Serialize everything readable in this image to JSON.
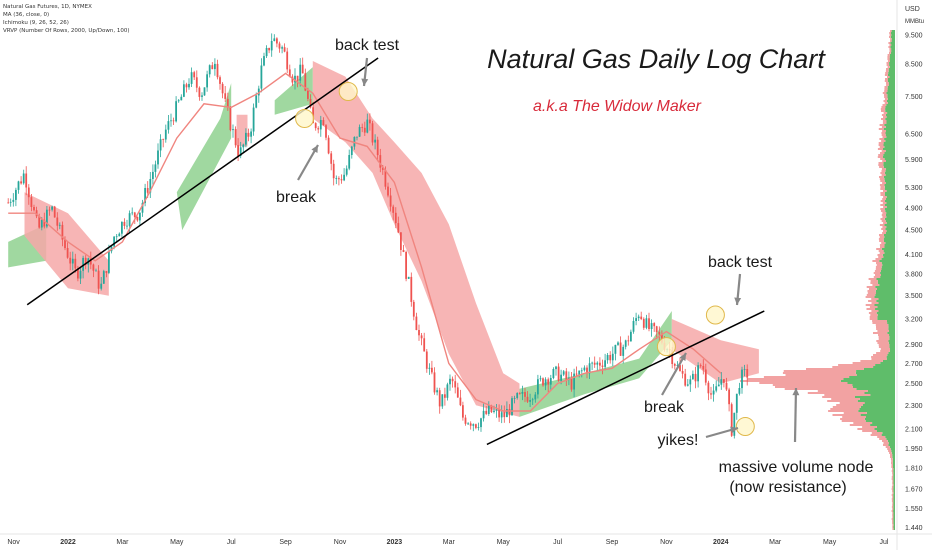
{
  "header": {
    "symbol": "Natural Gas Futures, 1D, NYMEX",
    "indicators": [
      "MA (36, close, 0)",
      "Ichimoku (9, 26, 52, 26)",
      "VRVP (Number Of Rows, 2000, Up/Down, 100)"
    ]
  },
  "annotations": {
    "title": "Natural Gas Daily Log Chart",
    "subtitle": "a.k.a The Widow Maker",
    "back_test_1": "back test",
    "break_1": "break",
    "back_test_2": "back test",
    "break_2": "break",
    "yikes": "yikes!",
    "volume_node_line1": "massive volume node",
    "volume_node_line2": "(now resistance)"
  },
  "colors": {
    "candle_up": "#26a69a",
    "candle_down": "#ef5350",
    "ma": "#f0857f",
    "cloud_bull": "#8fd18f",
    "cloud_bear": "#f6a8a8",
    "subtitle": "#d82a3a",
    "volume_up": "#5fbd6a",
    "volume_down": "#f2a2a2"
  },
  "chart_data": {
    "type": "candlestick",
    "scale": "log",
    "y_unit": "USD / MMBtu",
    "currency_label": "USD",
    "unit_label": "MMBtu",
    "y_ticks": [
      9.5,
      8.5,
      7.5,
      6.5,
      5.9,
      5.3,
      4.9,
      4.5,
      4.1,
      3.8,
      3.5,
      3.2,
      2.9,
      2.7,
      2.5,
      2.3,
      2.1,
      1.95,
      1.81,
      1.67,
      1.55,
      1.44
    ],
    "x_ticks": [
      "Nov",
      "2022",
      "Mar",
      "May",
      "Jul",
      "Sep",
      "Nov",
      "2023",
      "Mar",
      "May",
      "Jul",
      "Sep",
      "Nov",
      "2024",
      "Mar",
      "May",
      "Jul"
    ],
    "x_tick_months": [
      -2,
      0,
      2,
      4,
      6,
      8,
      10,
      12,
      14,
      16,
      18,
      20,
      22,
      24,
      26,
      28,
      30
    ],
    "price_path": [
      [
        -2.2,
        5.0
      ],
      [
        -1.6,
        5.6
      ],
      [
        -1.1,
        4.5
      ],
      [
        -0.6,
        4.9
      ],
      [
        -0.1,
        4.2
      ],
      [
        0.3,
        3.8
      ],
      [
        0.7,
        4.1
      ],
      [
        1.2,
        3.6
      ],
      [
        1.7,
        4.4
      ],
      [
        2.1,
        4.7
      ],
      [
        2.6,
        4.8
      ],
      [
        3.1,
        5.6
      ],
      [
        3.6,
        6.6
      ],
      [
        4.0,
        7.2
      ],
      [
        4.5,
        8.1
      ],
      [
        4.9,
        7.6
      ],
      [
        5.4,
        8.7
      ],
      [
        5.8,
        7.2
      ],
      [
        6.3,
        6.0
      ],
      [
        6.7,
        6.6
      ],
      [
        7.1,
        8.3
      ],
      [
        7.5,
        9.4
      ],
      [
        7.9,
        9.0
      ],
      [
        8.3,
        8.0
      ],
      [
        8.6,
        8.3
      ],
      [
        9.0,
        6.7
      ],
      [
        9.4,
        6.9
      ],
      [
        9.8,
        5.4
      ],
      [
        10.2,
        5.6
      ],
      [
        10.6,
        6.5
      ],
      [
        11.0,
        6.8
      ],
      [
        11.4,
        6.0
      ],
      [
        11.8,
        5.2
      ],
      [
        12.1,
        4.6
      ],
      [
        12.5,
        3.7
      ],
      [
        12.9,
        3.0
      ],
      [
        13.3,
        2.6
      ],
      [
        13.7,
        2.3
      ],
      [
        14.1,
        2.55
      ],
      [
        14.5,
        2.2
      ],
      [
        15.0,
        2.15
      ],
      [
        15.5,
        2.25
      ],
      [
        16.0,
        2.2
      ],
      [
        16.5,
        2.35
      ],
      [
        17.0,
        2.4
      ],
      [
        17.5,
        2.55
      ],
      [
        18.0,
        2.6
      ],
      [
        18.5,
        2.5
      ],
      [
        19.0,
        2.65
      ],
      [
        19.5,
        2.7
      ],
      [
        20.0,
        2.8
      ],
      [
        20.5,
        2.9
      ],
      [
        21.0,
        3.3
      ],
      [
        21.3,
        3.1
      ],
      [
        21.7,
        3.0
      ],
      [
        22.1,
        2.85
      ],
      [
        22.5,
        2.6
      ],
      [
        22.9,
        2.5
      ],
      [
        23.3,
        2.7
      ],
      [
        23.7,
        2.35
      ],
      [
        24.1,
        2.6
      ],
      [
        24.4,
        2.1
      ],
      [
        24.7,
        2.55
      ],
      [
        25.0,
        2.6
      ]
    ],
    "moving_average": [
      [
        -2.2,
        4.8
      ],
      [
        -1.2,
        4.8
      ],
      [
        0,
        4.3
      ],
      [
        1,
        4.0
      ],
      [
        2,
        4.3
      ],
      [
        3,
        5.2
      ],
      [
        4,
        6.4
      ],
      [
        5,
        7.3
      ],
      [
        6,
        7.2
      ],
      [
        7,
        7.6
      ],
      [
        8,
        8.2
      ],
      [
        9,
        7.6
      ],
      [
        10,
        6.4
      ],
      [
        11,
        6.2
      ],
      [
        12,
        5.4
      ],
      [
        13,
        3.9
      ],
      [
        14,
        2.7
      ],
      [
        15,
        2.35
      ],
      [
        16,
        2.25
      ],
      [
        17,
        2.25
      ],
      [
        18,
        2.5
      ],
      [
        19,
        2.6
      ],
      [
        20,
        2.65
      ],
      [
        21,
        2.85
      ],
      [
        22,
        3.05
      ],
      [
        23,
        2.85
      ],
      [
        24,
        2.6
      ]
    ],
    "ichimoku_cloud_bull": [
      [
        [
          -2.2,
          4.3
        ],
        [
          -0.8,
          4.6
        ],
        [
          -0.8,
          4.0
        ],
        [
          -2.2,
          3.9
        ]
      ],
      [
        [
          4.0,
          5.2
        ],
        [
          5.6,
          6.9
        ],
        [
          6.0,
          7.9
        ],
        [
          6.0,
          6.4
        ],
        [
          4.2,
          4.5
        ]
      ],
      [
        [
          7.6,
          7.4
        ],
        [
          9.0,
          8.4
        ],
        [
          9.0,
          7.3
        ],
        [
          7.6,
          7.0
        ]
      ],
      [
        [
          16.6,
          2.45
        ],
        [
          19.0,
          2.6
        ],
        [
          21.0,
          2.75
        ],
        [
          22.2,
          3.3
        ],
        [
          22.2,
          2.95
        ],
        [
          21.0,
          2.55
        ],
        [
          19.0,
          2.4
        ],
        [
          16.6,
          2.2
        ]
      ]
    ],
    "ichimoku_cloud_bear": [
      [
        [
          -1.6,
          5.2
        ],
        [
          0.0,
          4.8
        ],
        [
          1.5,
          4.0
        ],
        [
          1.5,
          3.5
        ],
        [
          0.0,
          3.6
        ],
        [
          -1.6,
          4.4
        ]
      ],
      [
        [
          6.2,
          7.0
        ],
        [
          6.6,
          7.0
        ],
        [
          6.6,
          6.2
        ],
        [
          6.2,
          6.2
        ]
      ],
      [
        [
          9.0,
          8.6
        ],
        [
          10.2,
          8.1
        ],
        [
          11.2,
          6.9
        ],
        [
          12.0,
          6.3
        ],
        [
          13.0,
          5.6
        ],
        [
          14.0,
          4.6
        ],
        [
          15.0,
          3.4
        ],
        [
          16.0,
          2.6
        ],
        [
          16.6,
          2.5
        ],
        [
          16.6,
          2.2
        ],
        [
          15.0,
          2.3
        ],
        [
          14.0,
          2.8
        ],
        [
          13.0,
          3.7
        ],
        [
          12.0,
          4.6
        ],
        [
          11.2,
          5.6
        ],
        [
          10.2,
          6.3
        ],
        [
          9.0,
          6.9
        ]
      ],
      [
        [
          22.2,
          3.2
        ],
        [
          24.0,
          2.95
        ],
        [
          25.4,
          2.85
        ],
        [
          25.4,
          2.6
        ],
        [
          24.0,
          2.5
        ],
        [
          22.2,
          2.85
        ]
      ]
    ],
    "trendlines": [
      {
        "from": [
          -1.5,
          3.38
        ],
        "to": [
          11.4,
          8.7
        ]
      },
      {
        "from": [
          15.4,
          1.98
        ],
        "to": [
          25.6,
          3.3
        ]
      }
    ],
    "markers": [
      {
        "label": "break",
        "at": [
          8.7,
          6.9
        ]
      },
      {
        "label": "back test",
        "at": [
          10.3,
          7.65
        ]
      },
      {
        "label": "break",
        "at": [
          22.0,
          2.88
        ]
      },
      {
        "label": "back test",
        "at": [
          23.8,
          3.25
        ]
      },
      {
        "label": "yikes!",
        "at": [
          24.9,
          2.12
        ]
      }
    ]
  }
}
